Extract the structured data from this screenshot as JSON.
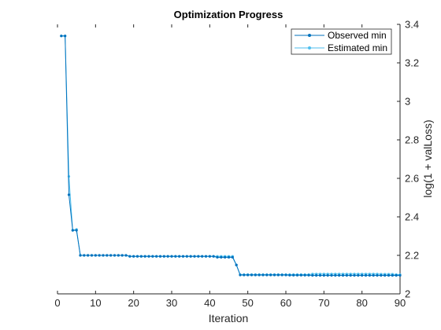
{
  "chart_data": {
    "type": "line",
    "title": "Optimization Progress",
    "xlabel": "Iteration",
    "ylabel": "log(1 + valLoss)",
    "xlim": [
      0,
      90
    ],
    "ylim": [
      2,
      3.4
    ],
    "x_ticks": [
      "0",
      "10",
      "20",
      "30",
      "40",
      "50",
      "60",
      "70",
      "80",
      "90"
    ],
    "y_ticks": [
      "2",
      "2.2",
      "2.4",
      "2.6",
      "2.8",
      "3",
      "3.2",
      "3.4"
    ],
    "y_axis_side": "right",
    "grid": false,
    "legend_position": "top-right",
    "series": [
      {
        "name": "Observed min",
        "color": "#0072BD",
        "marker": "dot",
        "points": [
          [
            1,
            3.34
          ],
          [
            2,
            3.34
          ],
          [
            3,
            2.515
          ],
          [
            4,
            2.33
          ],
          [
            5,
            2.33
          ],
          [
            6,
            2.2
          ],
          [
            7,
            2.2
          ],
          [
            8,
            2.2
          ],
          [
            9,
            2.2
          ],
          [
            10,
            2.2
          ],
          [
            11,
            2.2
          ],
          [
            12,
            2.2
          ],
          [
            13,
            2.2
          ],
          [
            14,
            2.2
          ],
          [
            15,
            2.2
          ],
          [
            16,
            2.2
          ],
          [
            17,
            2.2
          ],
          [
            18,
            2.2
          ],
          [
            19,
            2.195
          ],
          [
            20,
            2.195
          ],
          [
            21,
            2.195
          ],
          [
            22,
            2.195
          ],
          [
            23,
            2.195
          ],
          [
            24,
            2.195
          ],
          [
            25,
            2.195
          ],
          [
            26,
            2.195
          ],
          [
            27,
            2.195
          ],
          [
            28,
            2.195
          ],
          [
            29,
            2.195
          ],
          [
            30,
            2.195
          ],
          [
            31,
            2.195
          ],
          [
            32,
            2.195
          ],
          [
            33,
            2.195
          ],
          [
            34,
            2.195
          ],
          [
            35,
            2.195
          ],
          [
            36,
            2.195
          ],
          [
            37,
            2.195
          ],
          [
            38,
            2.195
          ],
          [
            39,
            2.195
          ],
          [
            40,
            2.195
          ],
          [
            41,
            2.195
          ],
          [
            42,
            2.19
          ],
          [
            43,
            2.19
          ],
          [
            44,
            2.19
          ],
          [
            45,
            2.19
          ],
          [
            46,
            2.19
          ],
          [
            47,
            2.15
          ],
          [
            48,
            2.098
          ],
          [
            49,
            2.098
          ],
          [
            50,
            2.098
          ],
          [
            51,
            2.098
          ],
          [
            52,
            2.098
          ],
          [
            53,
            2.098
          ],
          [
            54,
            2.098
          ],
          [
            55,
            2.098
          ],
          [
            56,
            2.098
          ],
          [
            57,
            2.098
          ],
          [
            58,
            2.098
          ],
          [
            59,
            2.098
          ],
          [
            60,
            2.098
          ],
          [
            61,
            2.097
          ],
          [
            62,
            2.097
          ],
          [
            63,
            2.097
          ],
          [
            64,
            2.097
          ],
          [
            65,
            2.097
          ],
          [
            66,
            2.097
          ],
          [
            67,
            2.096
          ],
          [
            68,
            2.096
          ],
          [
            69,
            2.096
          ],
          [
            70,
            2.096
          ],
          [
            71,
            2.096
          ],
          [
            72,
            2.096
          ],
          [
            73,
            2.096
          ],
          [
            74,
            2.096
          ],
          [
            75,
            2.096
          ],
          [
            76,
            2.096
          ],
          [
            77,
            2.096
          ],
          [
            78,
            2.096
          ],
          [
            79,
            2.096
          ],
          [
            80,
            2.096
          ],
          [
            81,
            2.096
          ],
          [
            82,
            2.096
          ],
          [
            83,
            2.096
          ],
          [
            84,
            2.096
          ],
          [
            85,
            2.096
          ],
          [
            86,
            2.096
          ],
          [
            87,
            2.096
          ],
          [
            88,
            2.096
          ],
          [
            89,
            2.096
          ],
          [
            90,
            2.096
          ]
        ]
      },
      {
        "name": "Estimated min",
        "color": "#4DBEEE",
        "marker": "dot",
        "points": [
          [
            1,
            3.34
          ],
          [
            2,
            3.34
          ],
          [
            3,
            2.61
          ],
          [
            4,
            2.33
          ],
          [
            5,
            2.335
          ],
          [
            6,
            2.2
          ],
          [
            7,
            2.2
          ],
          [
            8,
            2.2
          ],
          [
            9,
            2.2
          ],
          [
            10,
            2.2
          ],
          [
            11,
            2.2
          ],
          [
            12,
            2.2
          ],
          [
            13,
            2.2
          ],
          [
            14,
            2.2
          ],
          [
            15,
            2.2
          ],
          [
            16,
            2.2
          ],
          [
            17,
            2.2
          ],
          [
            18,
            2.2
          ],
          [
            19,
            2.195
          ],
          [
            20,
            2.195
          ],
          [
            21,
            2.195
          ],
          [
            22,
            2.195
          ],
          [
            23,
            2.195
          ],
          [
            24,
            2.195
          ],
          [
            25,
            2.195
          ],
          [
            26,
            2.195
          ],
          [
            27,
            2.195
          ],
          [
            28,
            2.195
          ],
          [
            29,
            2.195
          ],
          [
            30,
            2.195
          ],
          [
            31,
            2.195
          ],
          [
            32,
            2.195
          ],
          [
            33,
            2.195
          ],
          [
            34,
            2.195
          ],
          [
            35,
            2.195
          ],
          [
            36,
            2.195
          ],
          [
            37,
            2.195
          ],
          [
            38,
            2.195
          ],
          [
            39,
            2.195
          ],
          [
            40,
            2.195
          ],
          [
            41,
            2.195
          ],
          [
            42,
            2.195
          ],
          [
            43,
            2.195
          ],
          [
            44,
            2.195
          ],
          [
            45,
            2.195
          ],
          [
            46,
            2.195
          ],
          [
            47,
            2.15
          ],
          [
            48,
            2.1
          ],
          [
            49,
            2.1
          ],
          [
            50,
            2.1
          ],
          [
            51,
            2.1
          ],
          [
            52,
            2.1
          ],
          [
            53,
            2.1
          ],
          [
            54,
            2.1
          ],
          [
            55,
            2.1
          ],
          [
            56,
            2.1
          ],
          [
            57,
            2.1
          ],
          [
            58,
            2.1
          ],
          [
            59,
            2.1
          ],
          [
            60,
            2.1
          ],
          [
            61,
            2.1
          ],
          [
            62,
            2.1
          ],
          [
            63,
            2.1
          ],
          [
            64,
            2.1
          ],
          [
            65,
            2.1
          ],
          [
            66,
            2.1
          ],
          [
            67,
            2.103
          ],
          [
            68,
            2.103
          ],
          [
            69,
            2.103
          ],
          [
            70,
            2.103
          ],
          [
            71,
            2.103
          ],
          [
            72,
            2.103
          ],
          [
            73,
            2.103
          ],
          [
            74,
            2.103
          ],
          [
            75,
            2.103
          ],
          [
            76,
            2.103
          ],
          [
            77,
            2.103
          ],
          [
            78,
            2.103
          ],
          [
            79,
            2.103
          ],
          [
            80,
            2.103
          ],
          [
            81,
            2.103
          ],
          [
            82,
            2.103
          ],
          [
            83,
            2.103
          ],
          [
            84,
            2.103
          ],
          [
            85,
            2.102
          ],
          [
            86,
            2.102
          ],
          [
            87,
            2.102
          ],
          [
            88,
            2.102
          ],
          [
            89,
            2.1
          ],
          [
            90,
            2.1
          ]
        ]
      }
    ]
  }
}
